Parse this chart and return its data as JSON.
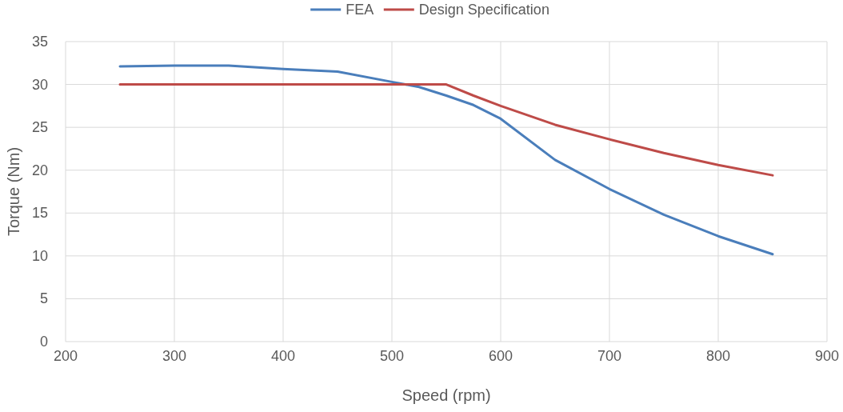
{
  "chart_data": {
    "type": "line",
    "xlabel": "Speed (rpm)",
    "ylabel": "Torque (Nm)",
    "xlim": [
      200,
      900
    ],
    "xticks": [
      200,
      300,
      400,
      500,
      600,
      700,
      800,
      900
    ],
    "ylim": [
      0,
      35
    ],
    "yticks": [
      0,
      5,
      10,
      15,
      20,
      25,
      30,
      35
    ],
    "grid": true,
    "legend": "top",
    "marker": "none",
    "line_style": "solid",
    "series": [
      {
        "name": "FEA",
        "color": "#4a7ebb",
        "x": [
          250,
          300,
          350,
          400,
          450,
          500,
          525,
          550,
          575,
          600,
          650,
          700,
          750,
          800,
          850
        ],
        "values": [
          32.1,
          32.2,
          32.2,
          31.8,
          31.5,
          30.3,
          29.7,
          28.7,
          27.6,
          26.0,
          21.2,
          17.8,
          14.8,
          12.3,
          10.2
        ]
      },
      {
        "name": "Design Specification",
        "color": "#be4b48",
        "x": [
          250,
          300,
          350,
          400,
          450,
          500,
          550,
          575,
          600,
          650,
          700,
          750,
          800,
          850
        ],
        "values": [
          30,
          30,
          30,
          30,
          30,
          30,
          30,
          28.7,
          27.5,
          25.3,
          23.6,
          22.0,
          20.6,
          19.4
        ]
      }
    ]
  }
}
